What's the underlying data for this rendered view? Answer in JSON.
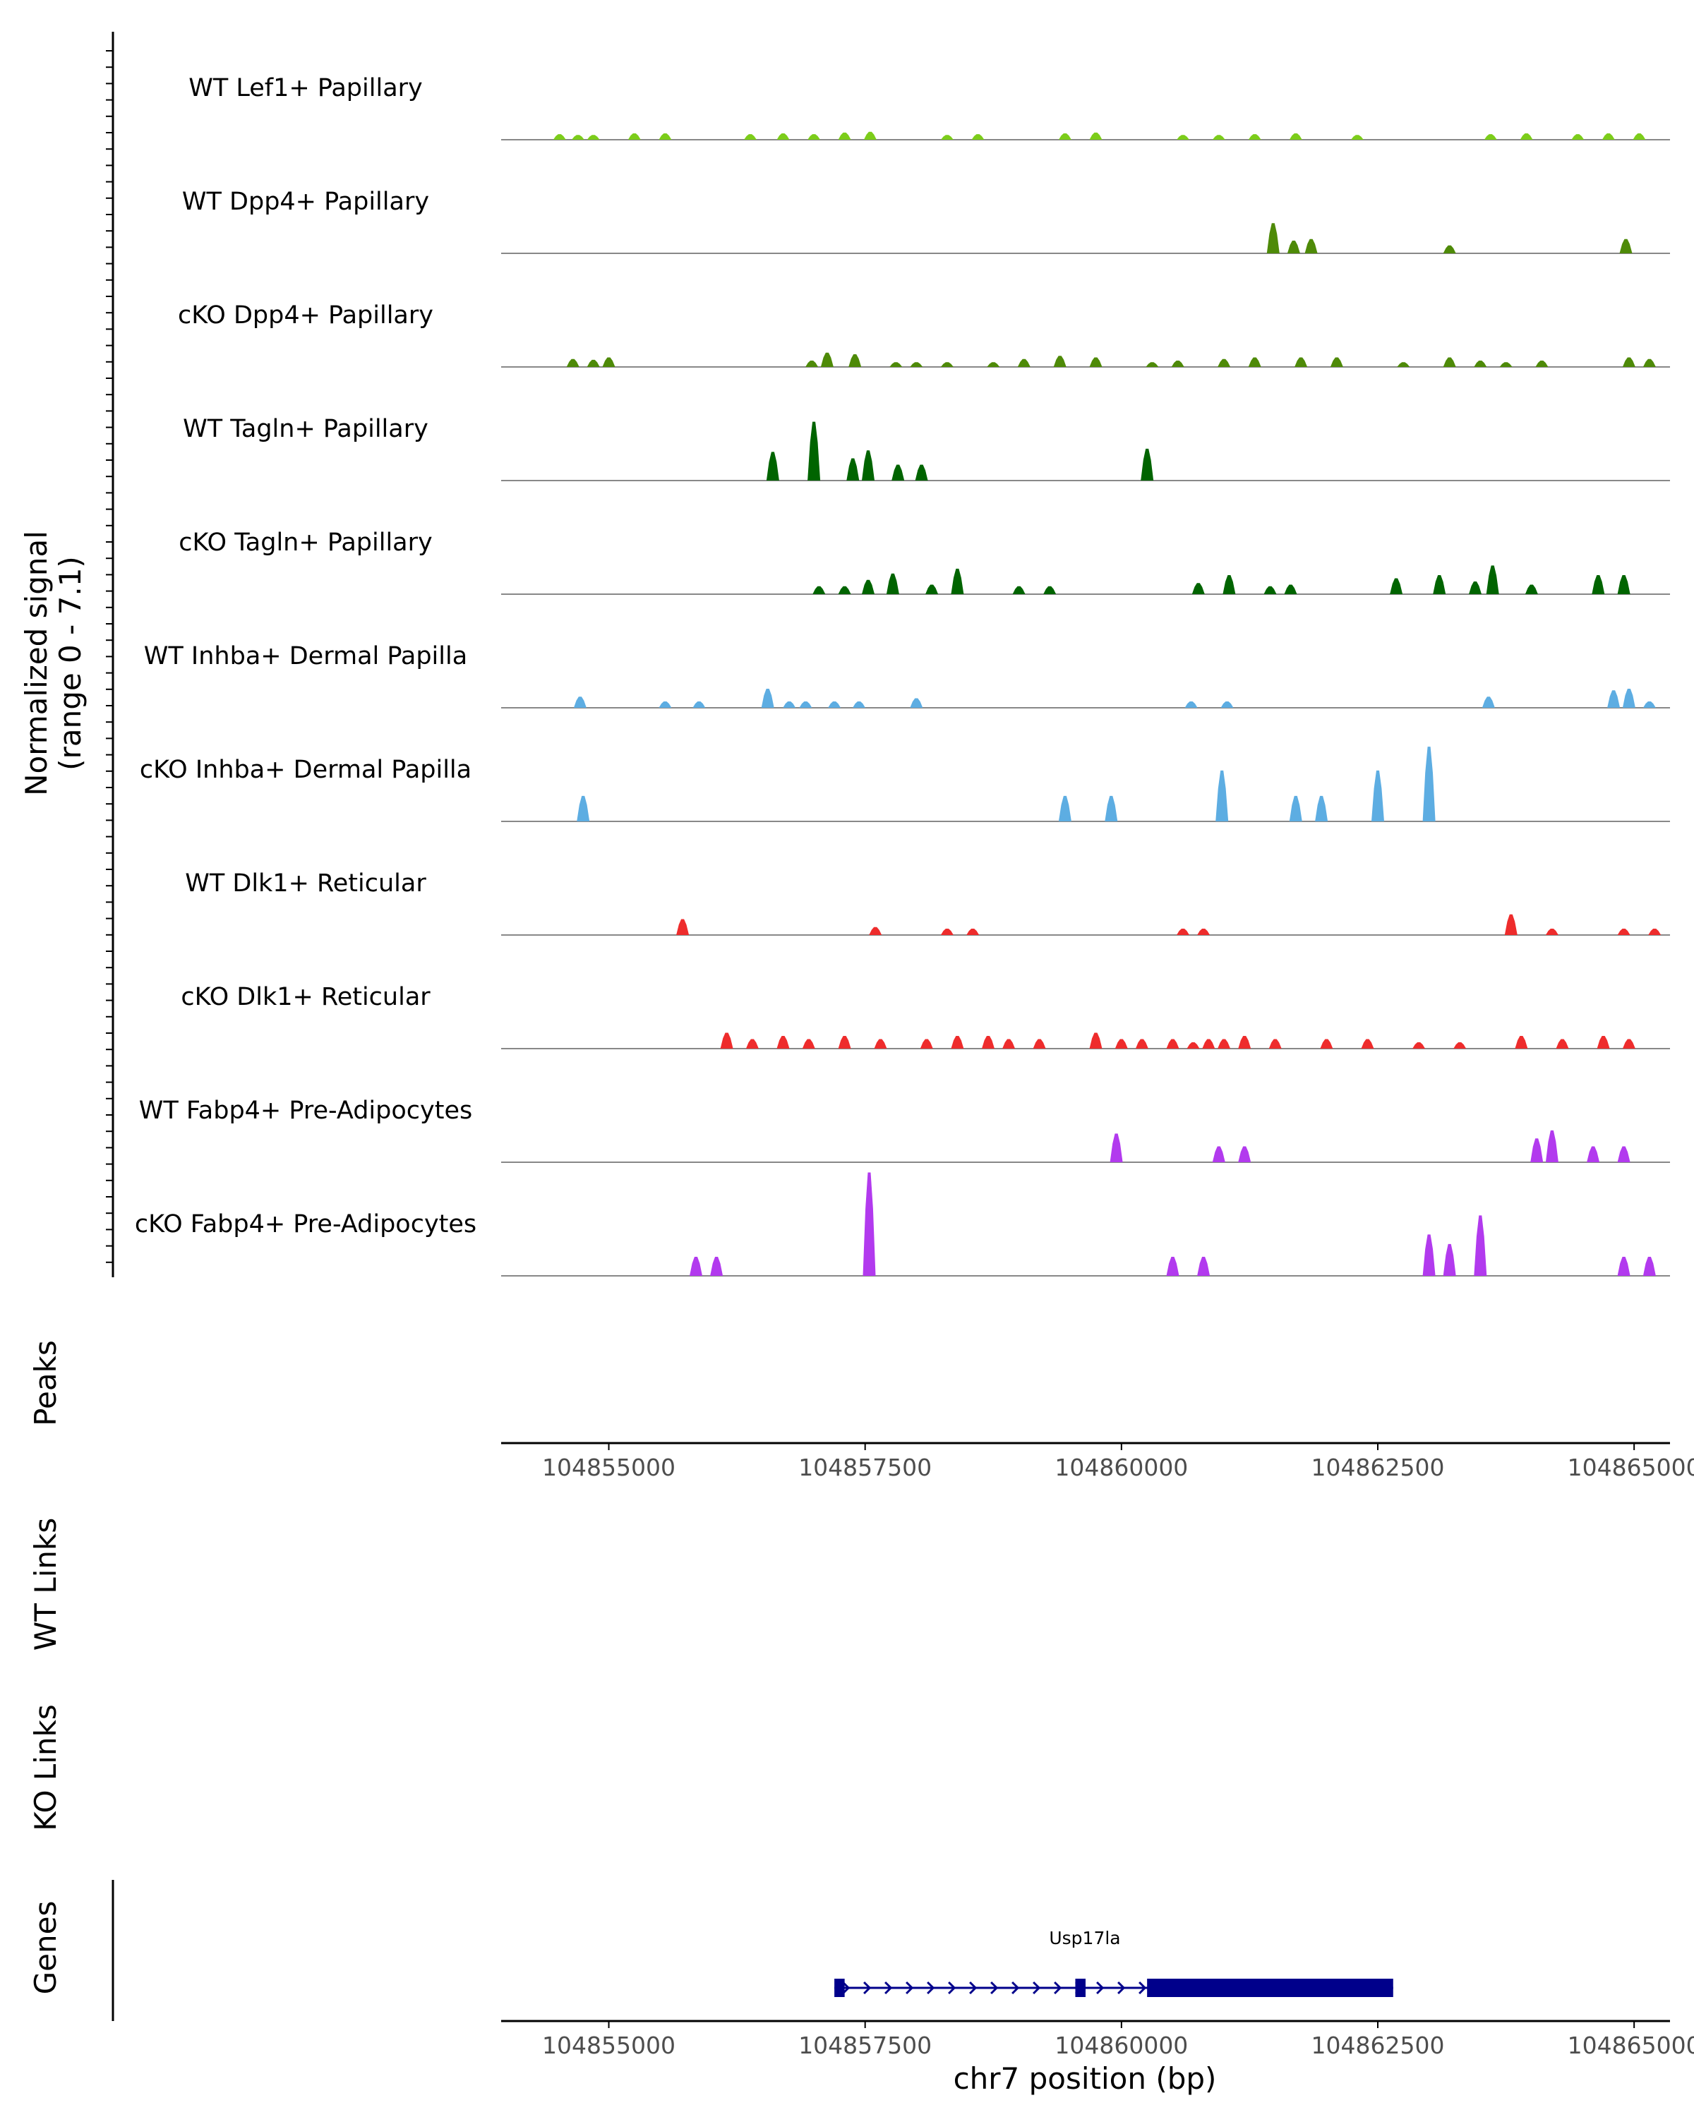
{
  "chart_data": {
    "type": "area",
    "title": "",
    "y_axis_label_line1": "Normalized signal",
    "y_axis_label_line2": "(range 0 - 7.1)",
    "ylim": [
      0,
      7.1
    ],
    "xlim": [
      104853950,
      104865350
    ],
    "xlabel": "chr7 position (bp)",
    "x_ticks": [
      104855000,
      104857500,
      104860000,
      104862500,
      104865000
    ],
    "x_tick_labels": [
      "104855000",
      "104857500",
      "104860000",
      "104862500",
      "104865000"
    ],
    "tracks": [
      {
        "name": "WT Lef1+ Papillary",
        "color": "#7CCD1A",
        "x": [
          104854520,
          104854700,
          104854850,
          104855250,
          104855550,
          104856380,
          104856700,
          104857000,
          104857300,
          104857550,
          104858300,
          104858600,
          104859450,
          104859750,
          104860600,
          104860950,
          104861300,
          104861700,
          104862300,
          104863600,
          104863950,
          104864450,
          104864750,
          104865050
        ],
        "y": [
          0.35,
          0.3,
          0.3,
          0.4,
          0.4,
          0.35,
          0.4,
          0.35,
          0.45,
          0.5,
          0.3,
          0.35,
          0.4,
          0.45,
          0.3,
          0.3,
          0.35,
          0.4,
          0.3,
          0.35,
          0.4,
          0.35,
          0.4,
          0.4
        ]
      },
      {
        "name": "WT Dpp4+ Papillary",
        "color": "#4E8A08",
        "x": [
          104861480,
          104861680,
          104861850,
          104863200,
          104864920
        ],
        "y": [
          1.9,
          0.8,
          0.9,
          0.5,
          0.9
        ]
      },
      {
        "name": "cKO Dpp4+ Papillary",
        "color": "#4E8A08",
        "x": [
          104854650,
          104854850,
          104855000,
          104856980,
          104857130,
          104857400,
          104857800,
          104858000,
          104858300,
          104858750,
          104859050,
          104859400,
          104859750,
          104860300,
          104860550,
          104861000,
          104861300,
          104861750,
          104862100,
          104862750,
          104863200,
          104863500,
          104863750,
          104864100,
          104864950,
          104865150
        ],
        "y": [
          0.5,
          0.45,
          0.6,
          0.4,
          0.9,
          0.8,
          0.3,
          0.3,
          0.3,
          0.3,
          0.5,
          0.7,
          0.6,
          0.3,
          0.4,
          0.5,
          0.6,
          0.6,
          0.6,
          0.3,
          0.6,
          0.4,
          0.3,
          0.4,
          0.6,
          0.5
        ]
      },
      {
        "name": "WT Tagln+ Papillary",
        "color": "#006400",
        "x": [
          104856600,
          104857000,
          104857380,
          104857530,
          104857820,
          104858050,
          104860250
        ],
        "y": [
          1.8,
          3.7,
          1.4,
          1.9,
          1.0,
          1.0,
          2.0
        ]
      },
      {
        "name": "cKO Tagln+ Papillary",
        "color": "#006400",
        "x": [
          104857050,
          104857300,
          104857530,
          104857770,
          104858150,
          104858400,
          104859000,
          104859300,
          104860750,
          104861050,
          104861450,
          104861650,
          104862680,
          104863100,
          104863450,
          104863620,
          104864000,
          104864650,
          104864900
        ],
        "y": [
          0.5,
          0.5,
          0.9,
          1.3,
          0.6,
          1.6,
          0.5,
          0.5,
          0.7,
          1.2,
          0.5,
          0.6,
          1.0,
          1.2,
          0.8,
          1.8,
          0.6,
          1.2,
          1.2
        ]
      },
      {
        "name": "WT Inhba+ Dermal Papilla",
        "color": "#5DADE2",
        "x": [
          104854720,
          104855550,
          104855880,
          104856550,
          104856760,
          104856920,
          104857200,
          104857440,
          104858000,
          104860680,
          104861030,
          104863580,
          104864800,
          104864950,
          104865150
        ],
        "y": [
          0.7,
          0.4,
          0.4,
          1.2,
          0.4,
          0.4,
          0.4,
          0.4,
          0.6,
          0.4,
          0.4,
          0.7,
          1.1,
          1.2,
          0.4
        ]
      },
      {
        "name": "cKO Inhba+ Dermal Papilla",
        "color": "#5DADE2",
        "x": [
          104854750,
          104859450,
          104859900,
          104860980,
          104861700,
          104861950,
          104862500,
          104863000
        ],
        "y": [
          1.6,
          1.6,
          1.6,
          3.2,
          1.6,
          1.6,
          3.2,
          4.7
        ]
      },
      {
        "name": "WT Dlk1+ Reticular",
        "color": "#EE2C2C",
        "x": [
          104855720,
          104857600,
          104858300,
          104858550,
          104860600,
          104860800,
          104863800,
          104864200,
          104864900,
          104865200
        ],
        "y": [
          1.0,
          0.5,
          0.4,
          0.4,
          0.4,
          0.4,
          1.3,
          0.4,
          0.4,
          0.4
        ]
      },
      {
        "name": "cKO Dlk1+ Reticular",
        "color": "#EE2C2C",
        "x": [
          104856150,
          104856400,
          104856700,
          104856950,
          104857300,
          104857650,
          104858100,
          104858400,
          104858700,
          104858900,
          104859200,
          104859750,
          104860000,
          104860200,
          104860500,
          104860700,
          104860850,
          104861000,
          104861200,
          104861500,
          104862000,
          104862400,
          104862900,
          104863300,
          104863900,
          104864300,
          104864700,
          104864950
        ],
        "y": [
          1.0,
          0.6,
          0.8,
          0.6,
          0.8,
          0.6,
          0.6,
          0.8,
          0.8,
          0.6,
          0.6,
          1.0,
          0.6,
          0.6,
          0.6,
          0.4,
          0.6,
          0.6,
          0.8,
          0.6,
          0.6,
          0.6,
          0.4,
          0.4,
          0.8,
          0.6,
          0.8,
          0.6
        ]
      },
      {
        "name": "WT Fabp4+ Pre-Adipocytes",
        "color": "#B23AEE",
        "x": [
          104859950,
          104860950,
          104861200,
          104864050,
          104864200,
          104864600,
          104864900
        ],
        "y": [
          1.8,
          1.0,
          1.0,
          1.5,
          2.0,
          1.0,
          1.0
        ]
      },
      {
        "name": "cKO Fabp4+ Pre-Adipocytes",
        "color": "#B23AEE",
        "x": [
          104855850,
          104856050,
          104857540,
          104860500,
          104860800,
          104863000,
          104863200,
          104863500,
          104864900,
          104865150
        ],
        "y": [
          1.2,
          1.2,
          6.5,
          1.2,
          1.2,
          2.6,
          2.0,
          3.8,
          1.2,
          1.2
        ]
      }
    ],
    "peaks_label": "Peaks",
    "wt_links_label": "WT Links",
    "ko_links_label": "KO Links",
    "genes_label": "Genes",
    "gene": {
      "name": "Usp17la",
      "start": 104857200,
      "end": 104862650,
      "strand": "+",
      "color": "#00008B",
      "exons": [
        [
          104857200,
          104857300
        ],
        [
          104859550,
          104859650
        ],
        [
          104860250,
          104862650
        ]
      ]
    }
  }
}
